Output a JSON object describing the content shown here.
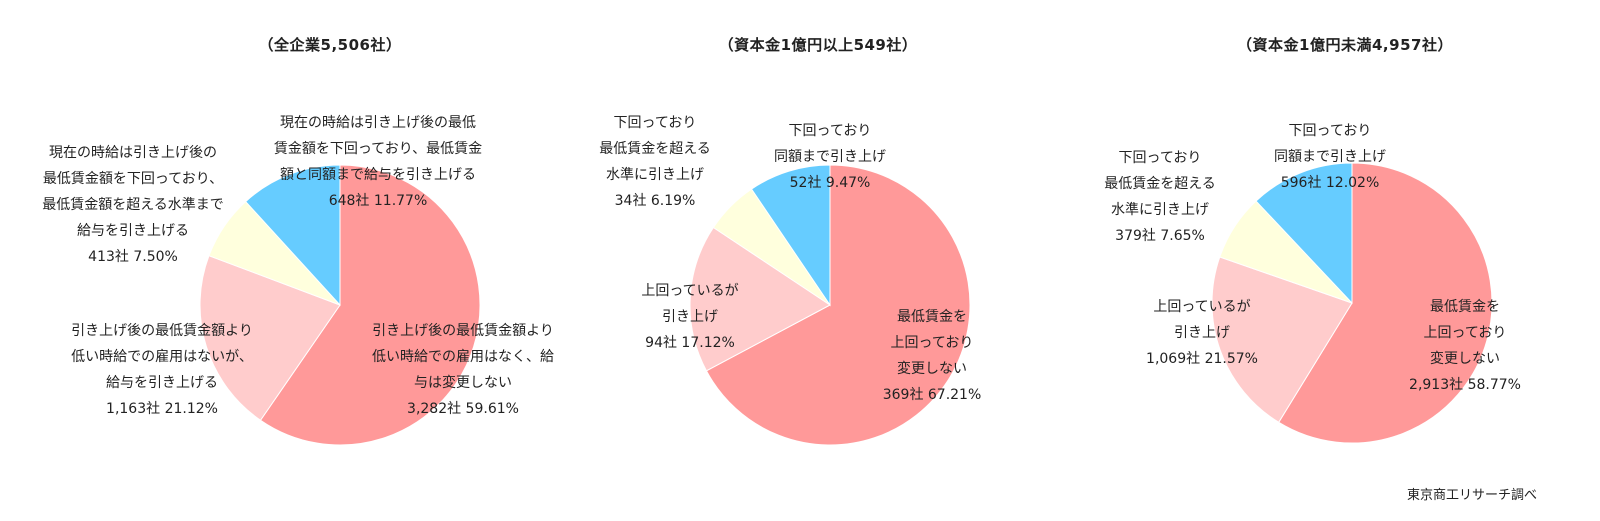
{
  "chart_data": [
    {
      "type": "pie",
      "title": "（全企業5,506社）",
      "colors": [
        "#FF9999",
        "#FFCCCC",
        "#FFFFDD",
        "#66CCFF"
      ],
      "slices": [
        {
          "lines": [
            "引き上げ後の最低賃金額より",
            "低い時給での雇用はなく、給",
            "与は変更しない",
            "3,282社 59.61%"
          ],
          "count": 3282,
          "percent": 59.61
        },
        {
          "lines": [
            "引き上げ後の最低賃金額より",
            "低い時給での雇用はないが、",
            "給与を引き上げる",
            "1,163社 21.12%"
          ],
          "count": 1163,
          "percent": 21.12
        },
        {
          "lines": [
            "現在の時給は引き上げ後の",
            "最低賃金額を下回っており、",
            "最低賃金額を超える水準まで",
            "給与を引き上げる",
            "413社 7.50%"
          ],
          "count": 413,
          "percent": 7.5
        },
        {
          "lines": [
            "現在の時給は引き上げ後の最低",
            "賃金額を下回っており、最低賃金",
            "額と同額まで給与を引き上げる",
            "648社 11.77%"
          ],
          "count": 648,
          "percent": 11.77
        }
      ]
    },
    {
      "type": "pie",
      "title": "（資本金1億円以上549社）",
      "colors": [
        "#FF9999",
        "#FFCCCC",
        "#FFFFDD",
        "#66CCFF"
      ],
      "slices": [
        {
          "lines": [
            "最低賃金を",
            "上回っており",
            "変更しない",
            "369社 67.21%"
          ],
          "count": 369,
          "percent": 67.21
        },
        {
          "lines": [
            "上回っているが",
            "引き上げ",
            "94社 17.12%"
          ],
          "count": 94,
          "percent": 17.12
        },
        {
          "lines": [
            "下回っており",
            "最低賃金を超える",
            "水準に引き上げ",
            "34社 6.19%"
          ],
          "count": 34,
          "percent": 6.19
        },
        {
          "lines": [
            "下回っており",
            "同額まで引き上げ",
            "52社 9.47%"
          ],
          "count": 52,
          "percent": 9.47
        }
      ]
    },
    {
      "type": "pie",
      "title": "（資本金1億円未満4,957社）",
      "colors": [
        "#FF9999",
        "#FFCCCC",
        "#FFFFDD",
        "#66CCFF"
      ],
      "slices": [
        {
          "lines": [
            "最低賃金を",
            "上回っており",
            "変更しない",
            "2,913社 58.77%"
          ],
          "count": 2913,
          "percent": 58.77
        },
        {
          "lines": [
            "上回っているが",
            "引き上げ",
            "1,069社 21.57%"
          ],
          "count": 1069,
          "percent": 21.57
        },
        {
          "lines": [
            "下回っており",
            "最低賃金を超える",
            "水準に引き上げ",
            "379社 7.65%"
          ],
          "count": 379,
          "percent": 7.65
        },
        {
          "lines": [
            "下回っており",
            "同額まで引き上げ",
            "596社 12.02%"
          ],
          "count": 596,
          "percent": 12.02
        }
      ]
    }
  ],
  "source": "東京商工リサーチ調べ"
}
